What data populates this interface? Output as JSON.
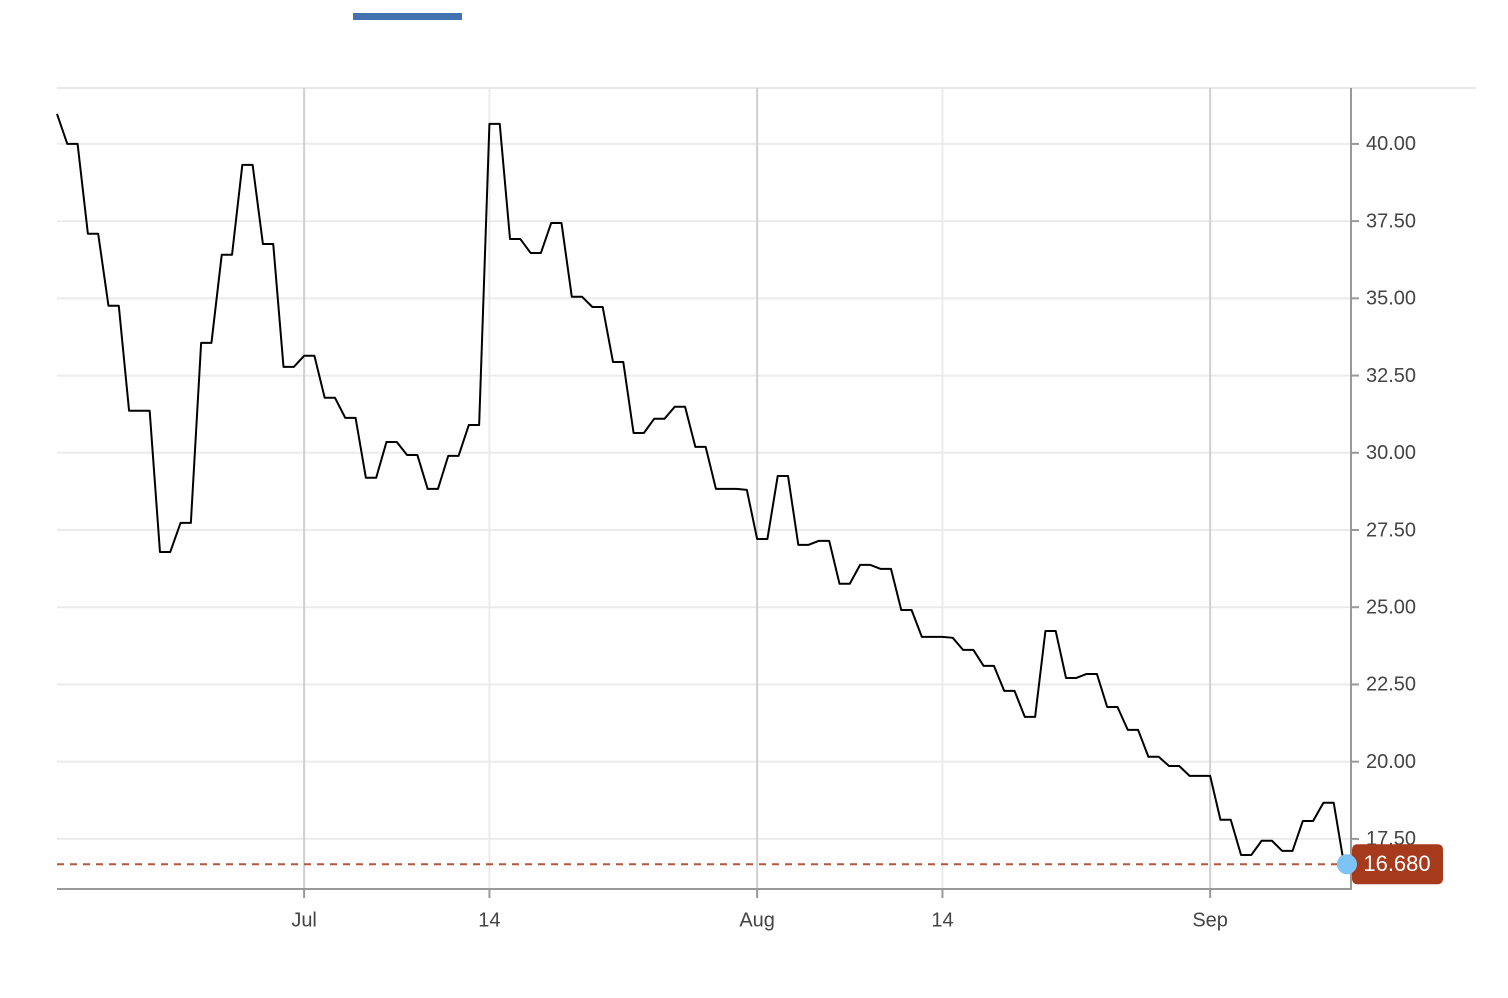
{
  "chart_data": {
    "type": "line",
    "categories": [
      null,
      null,
      null,
      null,
      null,
      null,
      null,
      null,
      null,
      null,
      null,
      null,
      null,
      null,
      null,
      null,
      null,
      null,
      null,
      null,
      null,
      null,
      null,
      null,
      "Jul",
      null,
      null,
      null,
      null,
      null,
      null,
      null,
      null,
      null,
      null,
      null,
      null,
      null,
      null,
      null,
      null,
      null,
      "14",
      null,
      null,
      null,
      null,
      null,
      null,
      null,
      null,
      null,
      null,
      null,
      null,
      null,
      null,
      null,
      null,
      null,
      null,
      null,
      null,
      null,
      null,
      null,
      null,
      null,
      "Aug",
      null,
      null,
      null,
      null,
      null,
      null,
      null,
      null,
      null,
      null,
      null,
      null,
      null,
      null,
      null,
      null,
      null,
      "14",
      null,
      null,
      null,
      null,
      null,
      null,
      null,
      null,
      null,
      null,
      null,
      null,
      null,
      null,
      null,
      null,
      null,
      null,
      null,
      null,
      null,
      null,
      null,
      null,
      null,
      "Sep",
      null,
      null,
      null,
      null,
      null,
      null,
      null,
      null,
      null,
      null,
      null,
      null,
      null
    ],
    "series": [
      {
        "color": "#000000",
        "values": [
          40.97,
          40.0,
          40.0,
          37.09,
          37.09,
          34.76,
          34.76,
          31.36,
          31.36,
          31.36,
          26.79,
          26.79,
          27.73,
          27.73,
          33.56,
          33.56,
          36.41,
          36.41,
          39.32,
          39.32,
          36.76,
          36.76,
          32.78,
          32.78,
          33.14,
          33.14,
          31.78,
          31.78,
          31.13,
          31.13,
          29.19,
          29.19,
          30.35,
          30.35,
          29.93,
          29.93,
          28.83,
          28.83,
          29.9,
          29.9,
          30.9,
          30.9,
          40.65,
          40.65,
          36.92,
          36.92,
          36.47,
          36.47,
          37.44,
          37.44,
          35.05,
          35.05,
          34.72,
          34.72,
          32.94,
          32.94,
          30.64,
          30.64,
          31.1,
          31.1,
          31.49,
          31.49,
          30.19,
          30.19,
          28.83,
          28.83,
          28.83,
          28.8,
          27.21,
          27.21,
          29.25,
          29.25,
          27.02,
          27.02,
          27.15,
          27.15,
          25.76,
          25.76,
          26.37,
          26.37,
          26.24,
          26.24,
          24.91,
          24.91,
          24.04,
          24.04,
          24.04,
          24.01,
          23.62,
          23.62,
          23.1,
          23.1,
          22.29,
          22.29,
          21.45,
          21.45,
          24.23,
          24.23,
          22.71,
          22.71,
          22.84,
          22.84,
          21.77,
          21.77,
          21.03,
          21.03,
          20.16,
          20.16,
          19.86,
          19.86,
          19.54,
          19.54,
          19.54,
          18.12,
          18.12,
          16.98,
          16.98,
          17.44,
          17.44,
          17.11,
          17.11,
          18.08,
          18.08,
          18.67,
          18.67,
          16.68
        ]
      }
    ],
    "ylim": [
      15.91,
      41.81
    ],
    "yticks": [
      {
        "value": 17.5,
        "label": "17.50"
      },
      {
        "value": 20,
        "label": "20.00"
      },
      {
        "value": 22.5,
        "label": "22.50"
      },
      {
        "value": 25,
        "label": "25.00"
      },
      {
        "value": 27.5,
        "label": "27.50"
      },
      {
        "value": 30,
        "label": "30.00"
      },
      {
        "value": 32.5,
        "label": "32.50"
      },
      {
        "value": 35,
        "label": "35.00"
      },
      {
        "value": 37.5,
        "label": "37.50"
      },
      {
        "value": 40,
        "label": "40.00"
      }
    ],
    "grid": true,
    "reference_line": {
      "value": 16.68,
      "label": "16.680",
      "color": "#a63a1c"
    }
  }
}
